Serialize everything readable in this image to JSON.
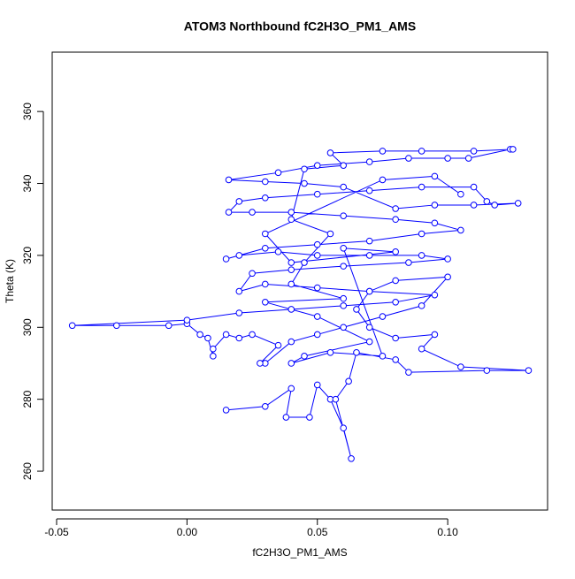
{
  "chart_data": {
    "type": "line",
    "title": "ATOM3 Northbound fC2H3O_PM1_AMS",
    "x_label": "fC2H3O_PM1_AMS",
    "y_label": "Theta (K)",
    "color": "#0000ff",
    "markers": true,
    "x": [
      0.015,
      0.03,
      0.04,
      0.038,
      0.047,
      0.05,
      0.055,
      0.06,
      0.063,
      0.057,
      0.062,
      0.065,
      0.08,
      0.085,
      0.115,
      0.131,
      0.105,
      0.09,
      0.095,
      0.08,
      0.07,
      0.065,
      0.07,
      0.08,
      0.1,
      0.09,
      0.075,
      0.06,
      0.05,
      0.04,
      0.03,
      0.028,
      0.035,
      0.025,
      0.02,
      0.015,
      0.01,
      0.01,
      0.008,
      0.005,
      0.0,
      -0.007,
      -0.027,
      -0.044,
      0.0,
      0.02,
      0.04,
      0.06,
      0.08,
      0.095,
      0.07,
      0.05,
      0.03,
      0.02,
      0.025,
      0.04,
      0.06,
      0.085,
      0.1,
      0.09,
      0.07,
      0.05,
      0.035,
      0.02,
      0.015,
      0.03,
      0.05,
      0.07,
      0.09,
      0.105,
      0.095,
      0.08,
      0.06,
      0.04,
      0.025,
      0.016,
      0.02,
      0.03,
      0.05,
      0.07,
      0.09,
      0.11,
      0.115,
      0.118,
      0.127,
      0.11,
      0.095,
      0.08,
      0.06,
      0.045,
      0.03,
      0.016,
      0.035,
      0.05,
      0.07,
      0.085,
      0.1,
      0.108,
      0.124,
      0.125,
      0.11,
      0.09,
      0.075,
      0.055,
      0.06,
      0.045,
      0.04,
      0.055,
      0.045,
      0.04,
      0.06,
      0.03,
      0.05,
      0.07,
      0.045,
      0.04,
      0.055,
      0.075,
      0.06,
      0.08,
      0.04,
      0.03,
      0.075,
      0.095,
      0.105
    ],
    "values": [
      277,
      278,
      283,
      275,
      275,
      284,
      280,
      272,
      263.5,
      280,
      285,
      293,
      291,
      287.5,
      288,
      288,
      289,
      294,
      298,
      297,
      300,
      305,
      310,
      313,
      314,
      306,
      303,
      300,
      298,
      296,
      290,
      290,
      295,
      298,
      297,
      298,
      294,
      292,
      297,
      298,
      301,
      300.5,
      300.5,
      300.5,
      302,
      304,
      305,
      306,
      307,
      309,
      310,
      311,
      312,
      310,
      315,
      316,
      317,
      318,
      319,
      320,
      320,
      320,
      321,
      320,
      319,
      322,
      323,
      324,
      326,
      327,
      329,
      330,
      331,
      332,
      332,
      332,
      335,
      336,
      337,
      338,
      339,
      339,
      335,
      334,
      334.5,
      334,
      334,
      333,
      339,
      340,
      340.5,
      341,
      343,
      345,
      346,
      347,
      347,
      347,
      349.5,
      349.5,
      349,
      349,
      349,
      348.5,
      345,
      344,
      330,
      326,
      318,
      312,
      308,
      307,
      303,
      296,
      292,
      290,
      293,
      292,
      322,
      321,
      318,
      326,
      341,
      342,
      337
    ],
    "xlim": [
      -0.0517,
      0.1383
    ],
    "ylim": [
      249.2,
      376.5
    ],
    "xticks": [
      -0.05,
      {
        "value": 0,
        "label": "0.00"
      },
      0.05,
      {
        "value": 0.1,
        "label": "0.10"
      }
    ],
    "yticks": [
      260,
      280,
      300,
      320,
      340,
      360
    ]
  }
}
